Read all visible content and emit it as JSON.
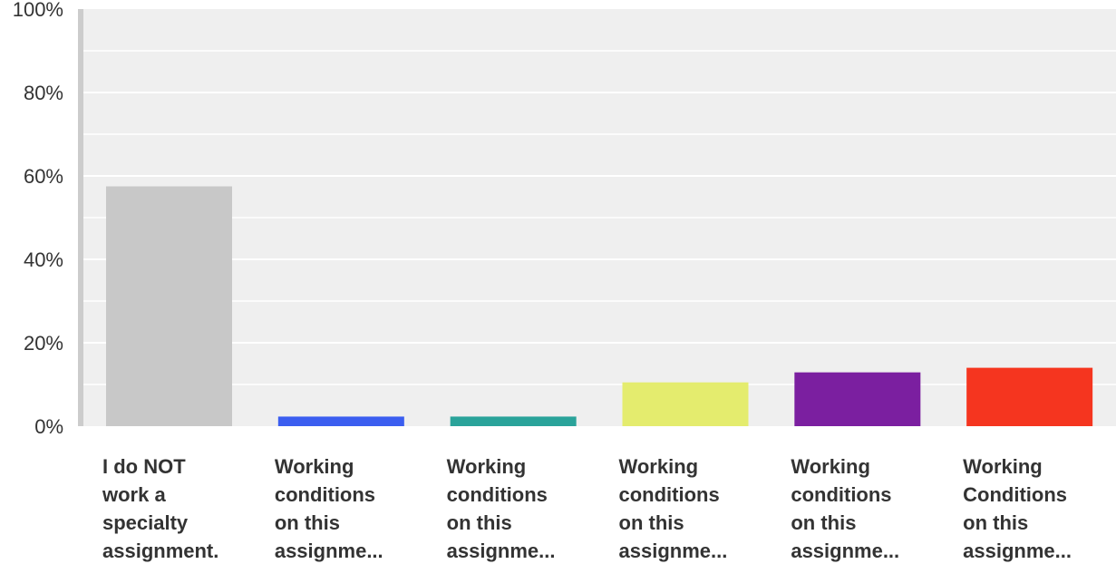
{
  "chart_data": {
    "type": "bar",
    "title": "",
    "xlabel": "",
    "ylabel": "",
    "ylim": [
      0,
      100
    ],
    "y_ticks": [
      "0%",
      "20%",
      "40%",
      "60%",
      "80%",
      "100%"
    ],
    "y_tick_values": [
      0,
      20,
      40,
      60,
      80,
      100
    ],
    "grid": true,
    "legend": "none",
    "categories": [
      [
        "I do NOT",
        "work a",
        "specialty",
        "assignment."
      ],
      [
        "Working",
        "conditions",
        "on this",
        "assignme..."
      ],
      [
        "Working",
        "conditions",
        "on this",
        "assignme..."
      ],
      [
        "Working",
        "conditions",
        "on this",
        "assignme..."
      ],
      [
        "Working",
        "conditions",
        "on this",
        "assignme..."
      ],
      [
        "Working",
        "Conditions",
        "on this",
        "assignme..."
      ]
    ],
    "values": [
      57.5,
      2.3,
      2.3,
      10.5,
      12.9,
      14.0
    ],
    "colors": [
      "#c8c8c8",
      "#3b5ef0",
      "#2aa39a",
      "#e4ec6e",
      "#7b1fa0",
      "#f5351f"
    ],
    "background_color": "#efefef",
    "gridline_color": "#ffffff",
    "axis_color": "#cccccc"
  }
}
